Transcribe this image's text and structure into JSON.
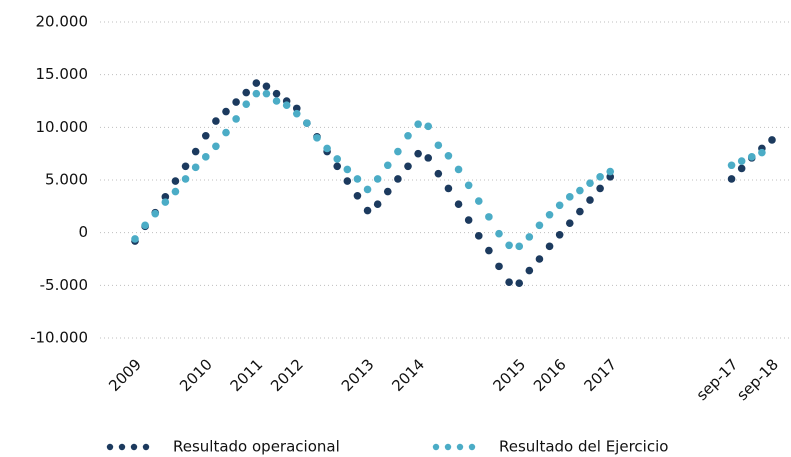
{
  "chart_data": {
    "type": "line",
    "categories": [
      "2009",
      null,
      null,
      null,
      null,
      null,
      null,
      "2010",
      null,
      null,
      null,
      null,
      "2011",
      null,
      null,
      null,
      "2012",
      null,
      null,
      null,
      null,
      null,
      null,
      "2013",
      null,
      null,
      null,
      null,
      "2014",
      null,
      null,
      null,
      null,
      null,
      null,
      null,
      null,
      null,
      "2015",
      null,
      null,
      null,
      "2016",
      null,
      null,
      null,
      null,
      "2017",
      null,
      null,
      null,
      null,
      null,
      null,
      null,
      null,
      null,
      null,
      null,
      "sep-17",
      null,
      null,
      null,
      "sep-18"
    ],
    "series": [
      {
        "name": "Resultado operacional",
        "color": "#1c3a5e",
        "values": [
          -800,
          600,
          1900,
          3400,
          4900,
          6300,
          7700,
          9200,
          10600,
          11500,
          12400,
          13300,
          14200,
          13900,
          13200,
          12500,
          11800,
          10400,
          9100,
          7700,
          6300,
          4900,
          3500,
          2100,
          2700,
          3900,
          5100,
          6300,
          7500,
          7100,
          5600,
          4200,
          2700,
          1200,
          -300,
          -1700,
          -3200,
          -4700,
          -4800,
          -3600,
          -2500,
          -1300,
          -200,
          900,
          2000,
          3100,
          4200,
          5300,
          null,
          null,
          null,
          null,
          null,
          null,
          null,
          null,
          null,
          null,
          null,
          5100,
          6100,
          7100,
          8000,
          8800
        ]
      },
      {
        "name": "Resultado del Ejercicio",
        "color": "#4bacc6",
        "values": [
          -600,
          700,
          1800,
          2900,
          3900,
          5100,
          6200,
          7200,
          8200,
          9500,
          10800,
          12200,
          13200,
          13200,
          12500,
          12100,
          11300,
          10400,
          9000,
          8000,
          7000,
          6000,
          5100,
          4100,
          5100,
          6400,
          7700,
          9200,
          10300,
          10100,
          8300,
          7300,
          6000,
          4500,
          3000,
          1500,
          -100,
          -1200,
          -1300,
          -400,
          700,
          1700,
          2600,
          3400,
          4000,
          4700,
          5300,
          5800,
          null,
          null,
          null,
          null,
          null,
          null,
          null,
          null,
          null,
          null,
          null,
          6400,
          6800,
          7200,
          7600,
          null
        ]
      }
    ],
    "ylim": [
      -10000,
      20000
    ],
    "yticks": [
      {
        "value": -10000,
        "label": "-10.000"
      },
      {
        "value": -5000,
        "label": "-5.000"
      },
      0,
      {
        "value": 5000,
        "label": "5.000"
      },
      {
        "value": 10000,
        "label": "10.000"
      },
      {
        "value": 15000,
        "label": "15.000"
      },
      {
        "value": 20000,
        "label": "20.000"
      }
    ],
    "grid": true,
    "legend": "bottom"
  }
}
